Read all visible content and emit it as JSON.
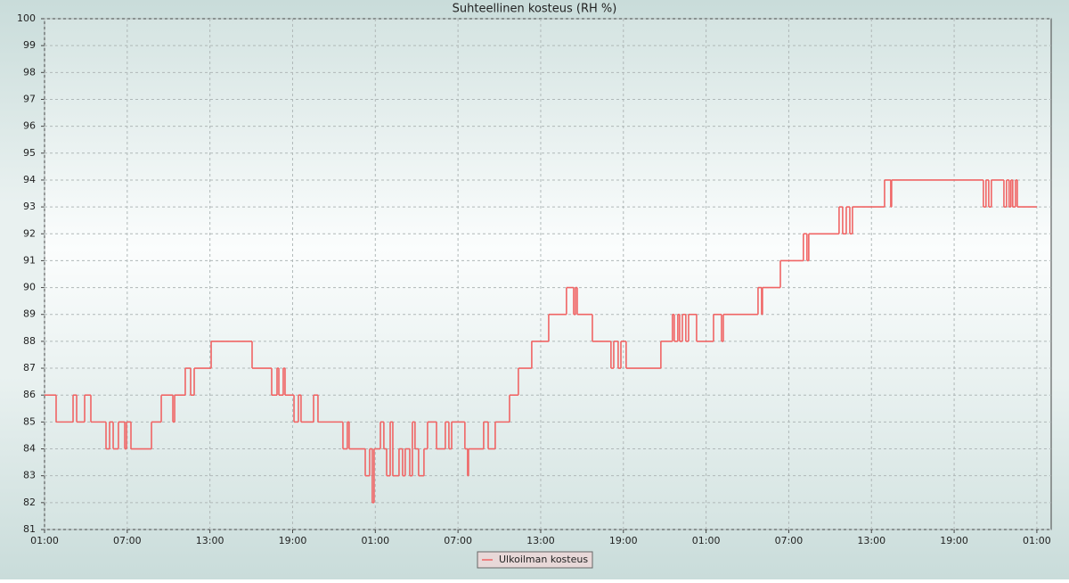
{
  "chart_data": {
    "type": "step-line",
    "title": "Suhteellinen kosteus (RH %)",
    "x": [
      0,
      0.84,
      2.07,
      2.33,
      2.91,
      3.36,
      4.46,
      4.72,
      4.98,
      5.36,
      5.82,
      5.95,
      6.27,
      7.76,
      8.47,
      9.31,
      9.44,
      10.21,
      10.6,
      10.86,
      12.09,
      15.06,
      16.48,
      16.87,
      17.0,
      17.32,
      17.45,
      18.1,
      18.42,
      18.61,
      19.52,
      19.84,
      21.65,
      21.97,
      22.1,
      23.27,
      23.59,
      23.78,
      23.91,
      24.37,
      24.62,
      24.82,
      25.08,
      25.27,
      25.72,
      25.98,
      26.17,
      26.5,
      26.69,
      26.88,
      27.14,
      27.53,
      27.79,
      28.44,
      29.08,
      29.34,
      29.54,
      30.5,
      30.7,
      30.76,
      31.86,
      32.19,
      32.7,
      33.74,
      34.38,
      35.35,
      36.58,
      37.87,
      38.39,
      38.52,
      38.65,
      39.75,
      41.1,
      41.3,
      41.62,
      41.82,
      42.2,
      44.72,
      45.56,
      45.69,
      45.95,
      46.08,
      46.28,
      46.53,
      46.73,
      47.31,
      48.54,
      49.12,
      49.25,
      51.77,
      52.03,
      52.09,
      53.39,
      55.06,
      55.32,
      55.45,
      57.65,
      57.91,
      58.17,
      58.43,
      58.62,
      60.95,
      61.4,
      61.46,
      68.12,
      68.31,
      68.51,
      68.7,
      69.61,
      69.8,
      69.99,
      70.12,
      70.25,
      70.45,
      70.58,
      72.0
    ],
    "series": [
      {
        "name": "Ulkoilman kosteus",
        "color": "#f06464",
        "values": [
          86,
          85,
          86,
          85,
          86,
          85,
          84,
          85,
          84,
          85,
          84,
          85,
          84,
          85,
          86,
          85,
          86,
          87,
          86,
          87,
          88,
          87,
          86,
          87,
          86,
          87,
          86,
          85,
          86,
          85,
          86,
          85,
          84,
          85,
          84,
          83,
          84,
          82,
          84,
          85,
          84,
          83,
          85,
          83,
          84,
          83,
          84,
          83,
          85,
          84,
          83,
          84,
          85,
          84,
          85,
          84,
          85,
          84,
          83,
          84,
          85,
          84,
          85,
          86,
          87,
          88,
          89,
          90,
          89,
          90,
          89,
          88,
          87,
          88,
          87,
          88,
          87,
          88,
          89,
          88,
          89,
          88,
          89,
          88,
          89,
          88,
          89,
          88,
          89,
          90,
          89,
          90,
          91,
          92,
          91,
          92,
          93,
          92,
          93,
          92,
          93,
          94,
          93,
          94,
          93,
          94,
          93,
          94,
          93,
          94,
          93,
          94,
          93,
          94,
          93,
          93
        ]
      }
    ],
    "xlim": [
      0,
      73.04
    ],
    "ylim": [
      81,
      100
    ],
    "xticks": [
      {
        "value": 0,
        "label": "01:00"
      },
      {
        "value": 6,
        "label": "07:00"
      },
      {
        "value": 12,
        "label": "13:00"
      },
      {
        "value": 18,
        "label": "19:00"
      },
      {
        "value": 24,
        "label": "01:00"
      },
      {
        "value": 30,
        "label": "07:00"
      },
      {
        "value": 36,
        "label": "13:00"
      },
      {
        "value": 42,
        "label": "19:00"
      },
      {
        "value": 48,
        "label": "01:00"
      },
      {
        "value": 54,
        "label": "07:00"
      },
      {
        "value": 60,
        "label": "13:00"
      },
      {
        "value": 66,
        "label": "19:00"
      },
      {
        "value": 72,
        "label": "01:00"
      }
    ],
    "yticks": [
      81,
      82,
      83,
      84,
      85,
      86,
      87,
      88,
      89,
      90,
      91,
      92,
      93,
      94,
      95,
      96,
      97,
      98,
      99,
      100
    ],
    "grid": true,
    "legend": "bottom"
  }
}
